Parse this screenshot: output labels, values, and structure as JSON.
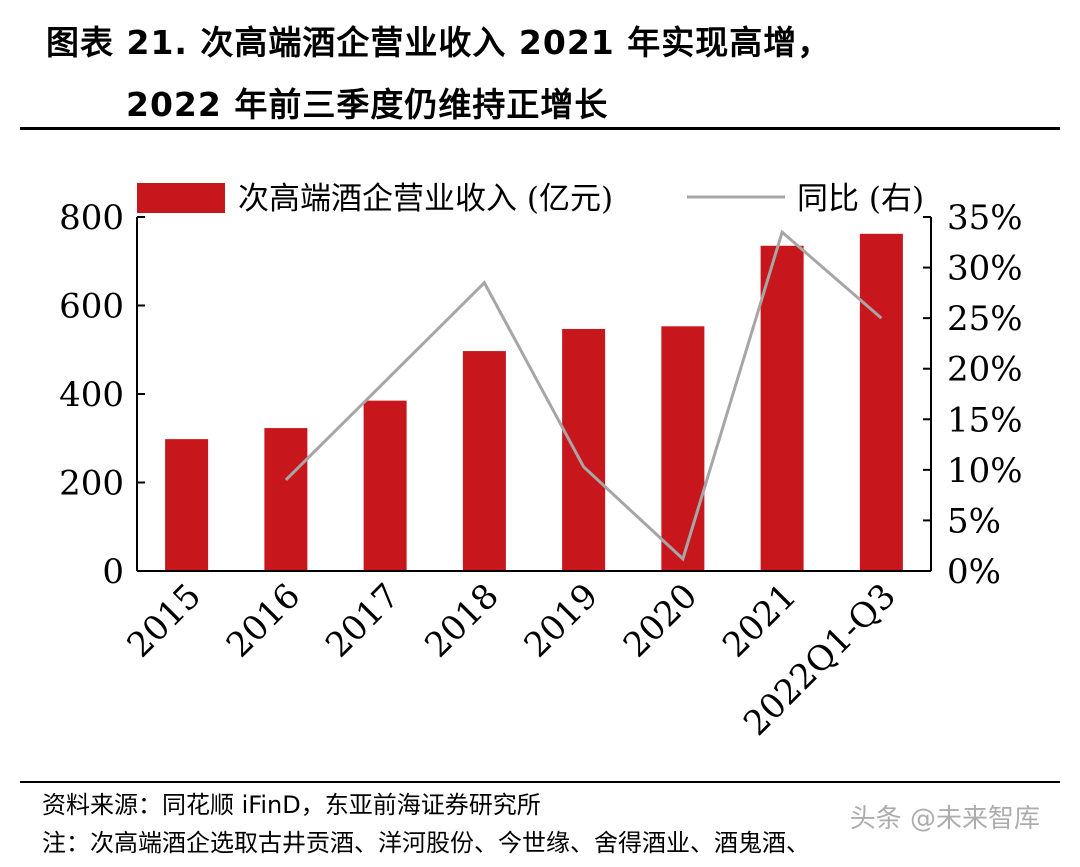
{
  "figure": {
    "title_line1": "图表 21. 次高端酒企营业收入 2021 年实现高增，",
    "title_line2": "2022 年前三季度仍维持正增长"
  },
  "footer": {
    "source": "资料来源：同花顺 iFinD，东亚前海证券研究所",
    "note": "注：次高端酒企选取古井贡酒、洋河股份、今世缘、舍得酒业、酒鬼酒、",
    "watermark": "头条 @未来智库"
  },
  "colors": {
    "bar": "#C8161D",
    "line": "#A6A6A6"
  },
  "chart_data": {
    "type": "bar",
    "categories": [
      "2015",
      "2016",
      "2017",
      "2018",
      "2019",
      "2020",
      "2021",
      "2022Q1-Q3"
    ],
    "series": [
      {
        "name": "次高端酒企营业收入 (亿元)",
        "type": "bar",
        "axis": "left",
        "values": [
          298,
          323,
          385,
          497,
          547,
          553,
          735,
          762
        ]
      },
      {
        "name": "同比 (右)",
        "type": "line",
        "axis": "right",
        "unit": "%",
        "values": [
          null,
          9,
          null,
          28.5,
          10.3,
          1.2,
          33.5,
          25
        ]
      }
    ],
    "y_left": {
      "ylim": [
        0,
        800
      ],
      "ticks": [
        "0",
        "200",
        "400",
        "600",
        "800"
      ]
    },
    "y_right": {
      "ylim": [
        0,
        35
      ],
      "ticks": [
        "0%",
        "5%",
        "10%",
        "15%",
        "20%",
        "25%",
        "30%",
        "35%"
      ]
    },
    "legend_position": "top",
    "grid": false
  }
}
